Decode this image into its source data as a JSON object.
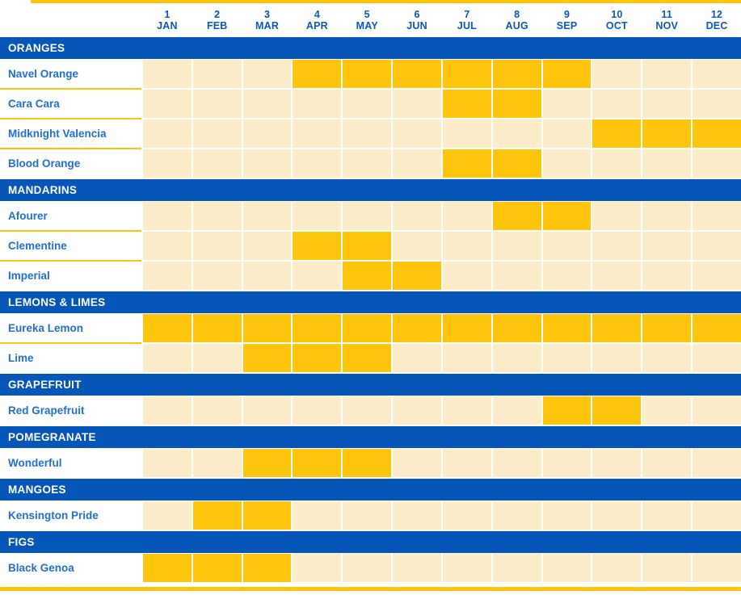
{
  "colors": {
    "section_bar_blue": "#0656b8",
    "section_bar_text": "#ffffff",
    "highlight_yellow": "#ffc40c",
    "cell_cream": "#fcecca",
    "row_label_blue": "#2070cc",
    "month_header_blue": "#0a58b8",
    "page_border_yellow": "#ffc40c"
  },
  "months": [
    {
      "num": "1",
      "abbr": "JAN"
    },
    {
      "num": "2",
      "abbr": "FEB"
    },
    {
      "num": "3",
      "abbr": "MAR"
    },
    {
      "num": "4",
      "abbr": "APR"
    },
    {
      "num": "5",
      "abbr": "MAY"
    },
    {
      "num": "6",
      "abbr": "JUN"
    },
    {
      "num": "7",
      "abbr": "JUL"
    },
    {
      "num": "8",
      "abbr": "AUG"
    },
    {
      "num": "9",
      "abbr": "SEP"
    },
    {
      "num": "10",
      "abbr": "OCT"
    },
    {
      "num": "11",
      "abbr": "NOV"
    },
    {
      "num": "12",
      "abbr": "DEC"
    }
  ],
  "sections": [
    {
      "label": "ORANGES",
      "rows": [
        {
          "label": "Navel Orange",
          "available_months": [
            4,
            5,
            6,
            7,
            8,
            9
          ]
        },
        {
          "label": "Cara Cara",
          "available_months": [
            7,
            8
          ]
        },
        {
          "label": "Midknight Valencia",
          "available_months": [
            10,
            11,
            12
          ]
        },
        {
          "label": "Blood Orange",
          "available_months": [
            7,
            8
          ]
        }
      ]
    },
    {
      "label": "MANDARINS",
      "rows": [
        {
          "label": "Afourer",
          "available_months": [
            8,
            9
          ]
        },
        {
          "label": "Clementine",
          "available_months": [
            4,
            5
          ]
        },
        {
          "label": "Imperial",
          "available_months": [
            5,
            6
          ]
        }
      ]
    },
    {
      "label": "LEMONS & LIMES",
      "rows": [
        {
          "label": "Eureka Lemon",
          "available_months": [
            1,
            2,
            3,
            4,
            5,
            6,
            7,
            8,
            9,
            10,
            11,
            12
          ]
        },
        {
          "label": "Lime",
          "available_months": [
            3,
            4,
            5
          ]
        }
      ]
    },
    {
      "label": "GRAPEFRUIT",
      "rows": [
        {
          "label": "Red Grapefruit",
          "available_months": [
            9,
            10
          ]
        }
      ]
    },
    {
      "label": "POMEGRANATE",
      "rows": [
        {
          "label": "Wonderful",
          "available_months": [
            3,
            4,
            5
          ]
        }
      ]
    },
    {
      "label": "MANGOES",
      "rows": [
        {
          "label": "Kensington Pride",
          "available_months": [
            2,
            3
          ]
        }
      ]
    },
    {
      "label": "FIGS",
      "rows": [
        {
          "label": "Black Genoa",
          "available_months": [
            1,
            2,
            3
          ]
        }
      ]
    }
  ],
  "chart_data": {
    "type": "heatmap",
    "title": "",
    "x": [
      "JAN",
      "FEB",
      "MAR",
      "APR",
      "MAY",
      "JUN",
      "JUL",
      "AUG",
      "SEP",
      "OCT",
      "NOV",
      "DEC"
    ],
    "x_numbers": [
      1,
      2,
      3,
      4,
      5,
      6,
      7,
      8,
      9,
      10,
      11,
      12
    ],
    "legend_position": "none",
    "grid": true,
    "series": [
      {
        "name": "Navel Orange",
        "group": "ORANGES",
        "values": [
          0,
          0,
          0,
          1,
          1,
          1,
          1,
          1,
          1,
          0,
          0,
          0
        ]
      },
      {
        "name": "Cara Cara",
        "group": "ORANGES",
        "values": [
          0,
          0,
          0,
          0,
          0,
          0,
          1,
          1,
          0,
          0,
          0,
          0
        ]
      },
      {
        "name": "Midknight Valencia",
        "group": "ORANGES",
        "values": [
          0,
          0,
          0,
          0,
          0,
          0,
          0,
          0,
          0,
          1,
          1,
          1
        ]
      },
      {
        "name": "Blood Orange",
        "group": "ORANGES",
        "values": [
          0,
          0,
          0,
          0,
          0,
          0,
          1,
          1,
          0,
          0,
          0,
          0
        ]
      },
      {
        "name": "Afourer",
        "group": "MANDARINS",
        "values": [
          0,
          0,
          0,
          0,
          0,
          0,
          0,
          1,
          1,
          0,
          0,
          0
        ]
      },
      {
        "name": "Clementine",
        "group": "MANDARINS",
        "values": [
          0,
          0,
          0,
          1,
          1,
          0,
          0,
          0,
          0,
          0,
          0,
          0
        ]
      },
      {
        "name": "Imperial",
        "group": "MANDARINS",
        "values": [
          0,
          0,
          0,
          0,
          1,
          1,
          0,
          0,
          0,
          0,
          0,
          0
        ]
      },
      {
        "name": "Eureka Lemon",
        "group": "LEMONS & LIMES",
        "values": [
          1,
          1,
          1,
          1,
          1,
          1,
          1,
          1,
          1,
          1,
          1,
          1
        ]
      },
      {
        "name": "Lime",
        "group": "LEMONS & LIMES",
        "values": [
          0,
          0,
          1,
          1,
          1,
          0,
          0,
          0,
          0,
          0,
          0,
          0
        ]
      },
      {
        "name": "Red Grapefruit",
        "group": "GRAPEFRUIT",
        "values": [
          0,
          0,
          0,
          0,
          0,
          0,
          0,
          0,
          1,
          1,
          0,
          0
        ]
      },
      {
        "name": "Wonderful",
        "group": "POMEGRANATE",
        "values": [
          0,
          0,
          1,
          1,
          1,
          0,
          0,
          0,
          0,
          0,
          0,
          0
        ]
      },
      {
        "name": "Kensington Pride",
        "group": "MANGOES",
        "values": [
          0,
          1,
          1,
          0,
          0,
          0,
          0,
          0,
          0,
          0,
          0,
          0
        ]
      },
      {
        "name": "Black Genoa",
        "group": "FIGS",
        "values": [
          1,
          1,
          1,
          0,
          0,
          0,
          0,
          0,
          0,
          0,
          0,
          0
        ]
      }
    ]
  }
}
